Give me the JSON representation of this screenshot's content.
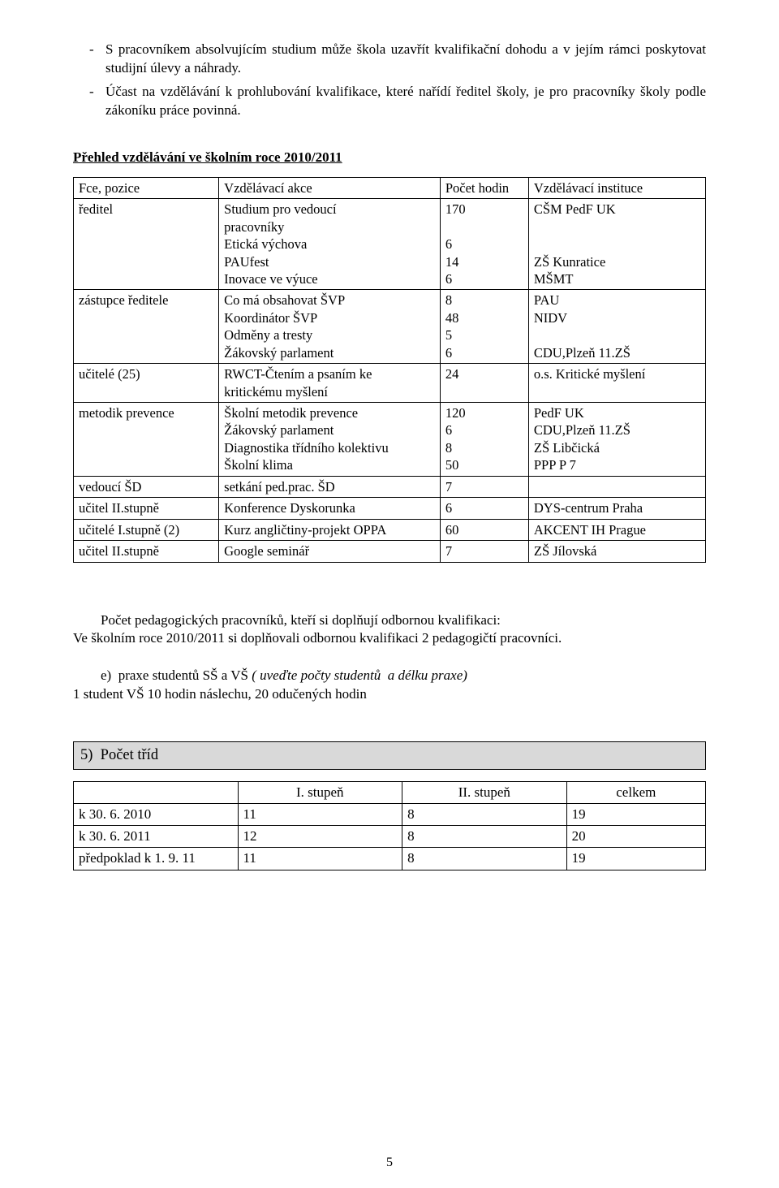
{
  "bullets": [
    "S pracovníkem absolvujícím studium může škola uzavřít kvalifikační dohodu a v jejím rámci poskytovat studijní úlevy a náhrady.",
    "Účast na vzdělávání k prohlubování kvalifikace, které nařídí ředitel školy, je pro pracovníky školy podle zákoníku práce povinná."
  ],
  "heading": "Přehled vzdělávání ve školním roce 2010/2011",
  "training_table": {
    "headers": [
      "Fce, pozice",
      "Vzdělávací akce",
      "Počet hodin",
      "Vzdělávací instituce"
    ],
    "rows": [
      {
        "pos": "ředitel",
        "akce": [
          "Studium pro vedoucí",
          "pracovníky",
          "Etická výchova",
          "PAUfest",
          "Inovace ve výuce"
        ],
        "hod": [
          "170",
          "",
          "6",
          "14",
          "6"
        ],
        "inst": [
          "CŠM PedF UK",
          "",
          "",
          "ZŠ Kunratice",
          "MŠMT"
        ]
      },
      {
        "pos": "zástupce ředitele",
        "akce": [
          "Co má obsahovat ŠVP",
          "Koordinátor ŠVP",
          "Odměny a tresty",
          "Žákovský parlament"
        ],
        "hod": [
          "8",
          "48",
          "5",
          "6"
        ],
        "inst": [
          "PAU",
          "NIDV",
          "",
          "CDU,Plzeň 11.ZŠ"
        ]
      },
      {
        "pos": "učitelé (25)",
        "akce": [
          "RWCT-Čtením a psaním ke",
          "kritickému myšlení"
        ],
        "hod": [
          "24",
          ""
        ],
        "inst": [
          "o.s. Kritické myšlení",
          ""
        ]
      },
      {
        "pos": "metodik prevence",
        "akce": [
          "Školní metodik prevence",
          "Žákovský parlament",
          "Diagnostika třídního kolektivu",
          "Školní klima"
        ],
        "hod": [
          "120",
          "6",
          "8",
          "50"
        ],
        "inst": [
          "PedF UK",
          "CDU,Plzeň 11.ZŠ",
          "ZŠ Libčická",
          "PPP P 7"
        ]
      },
      {
        "pos": "vedoucí ŠD",
        "akce": [
          "setkání ped.prac. ŠD"
        ],
        "hod": [
          "7"
        ],
        "inst": [
          ""
        ]
      },
      {
        "pos": "učitel II.stupně",
        "akce": [
          "Konference Dyskorunka"
        ],
        "hod": [
          "6"
        ],
        "inst": [
          "DYS-centrum Praha"
        ]
      },
      {
        "pos": "učitelé I.stupně (2)",
        "akce": [
          "Kurz angličtiny-projekt OPPA"
        ],
        "hod": [
          "60"
        ],
        "inst": [
          "AKCENT IH Prague"
        ]
      },
      {
        "pos": "učitel II.stupně",
        "akce": [
          "Google seminář"
        ],
        "hod": [
          "7"
        ],
        "inst": [
          "ZŠ Jílovská"
        ]
      }
    ]
  },
  "para1_indent": "        Počet pedagogických pracovníků, kteří si doplňují odbornou kvalifikaci:",
  "para1_line2": "Ve školním roce 2010/2011 si doplňovali odbornou kvalifikaci 2 pedagogičtí pracovníci.",
  "para2_prefix": "        e)  praxe studentů SŠ a VŠ ",
  "para2_italic": "( uveďte počty studentů  a délku praxe)",
  "para2_line2": "1 student VŠ 10 hodin náslechu, 20 odučených hodin",
  "section5": "5)  Počet tříd",
  "classes_table": {
    "headers": [
      "",
      "I. stupeň",
      "II. stupeň",
      "celkem"
    ],
    "rows": [
      [
        "k 30. 6. 2010",
        "11",
        "8",
        "19"
      ],
      [
        "k 30. 6. 2011",
        "12",
        "8",
        "20"
      ],
      [
        "předpoklad k 1. 9. 11",
        "11",
        "8",
        "19"
      ]
    ]
  },
  "page_number": "5"
}
